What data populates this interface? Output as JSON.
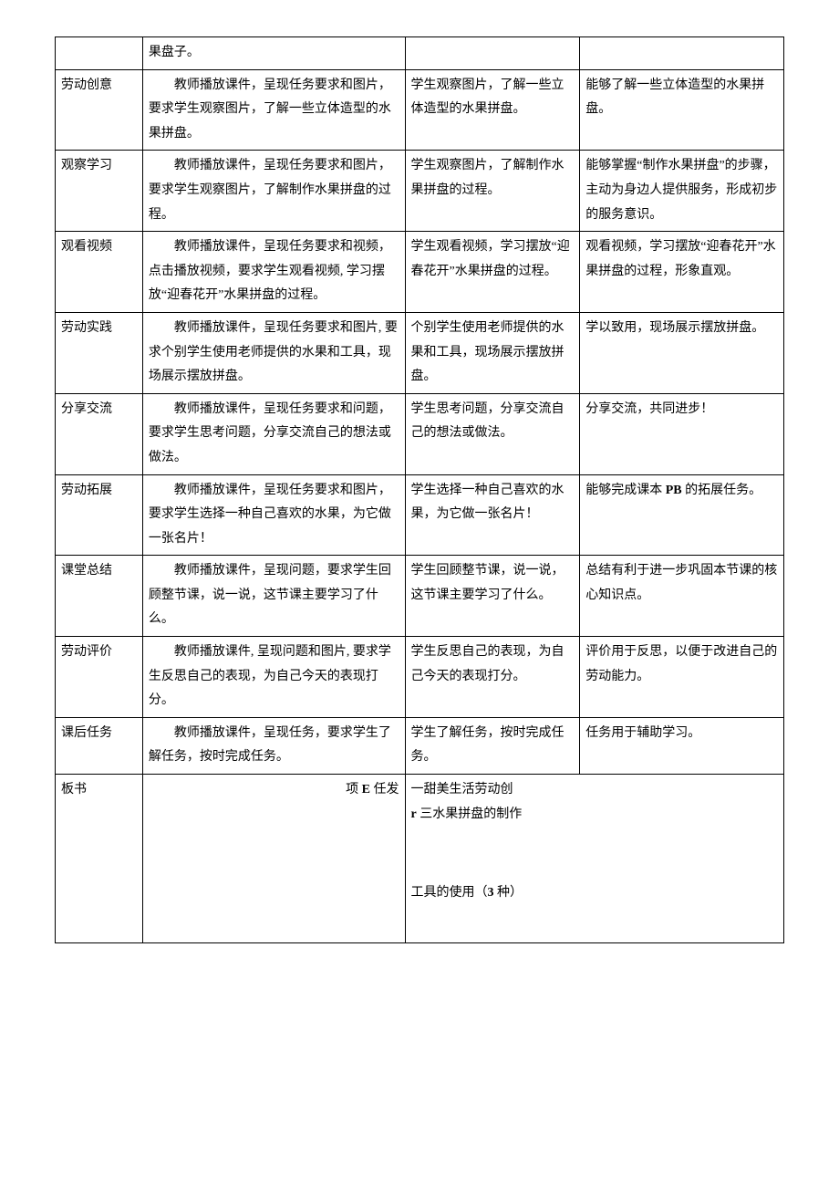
{
  "rows": [
    {
      "c1": "",
      "c2": "果盘子。",
      "c2class": "",
      "c3": "",
      "c4": ""
    },
    {
      "c1": "劳动创意",
      "c2": "教师播放课件，呈现任务要求和图片，要求学生观察图片，了解一些立体造型的水果拼盘。",
      "c2class": "indent",
      "c3": "学生观察图片，了解一些立体造型的水果拼盘。",
      "c4": "能够了解一些立体造型的水果拼盘。"
    },
    {
      "c1": "观察学习",
      "c2": "教师播放课件，呈现任务要求和图片，要求学生观察图片，了解制作水果拼盘的过程。",
      "c2class": "indent",
      "c3": "学生观察图片，了解制作水果拼盘的过程。",
      "c4": "能够掌握“制作水果拼盘”的步骤，主动为身边人提供服务，形成初步的服务意识。"
    },
    {
      "c1": "观看视频",
      "c2": "教师播放课件，呈现任务要求和视频，点击播放视频，要求学生观看视频, 学习摆放“迎春花开”水果拼盘的过程。",
      "c2class": "indent",
      "c3": "学生观看视频，学习摆放“迎春花开”水果拼盘的过程。",
      "c4": "观看视频，学习摆放“迎春花开”水果拼盘的过程，形象直观。"
    },
    {
      "c1": "劳动实践",
      "c2": "教师播放课件，呈现任务要求和图片, 要求个别学生使用老师提供的水果和工具，现场展示摆放拼盘。",
      "c2class": "indent",
      "c3": "个别学生使用老师提供的水果和工具，现场展示摆放拼盘。",
      "c4": "学以致用，现场展示摆放拼盘。"
    },
    {
      "c1": "分享交流",
      "c2": "教师播放课件，呈现任务要求和问题，要求学生思考问题，分享交流自己的想法或做法。",
      "c2class": "indent",
      "c3": "学生思考问题，分享交流自己的想法或做法。",
      "c4": "分享交流，共同进步！"
    },
    {
      "c1": "劳动拓展",
      "c2": "教师播放课件，呈现任务要求和图片，要求学生选择一种自己喜欢的水果，为它做一张名片！",
      "c2class": "indent",
      "c3": "学生选择一种自己喜欢的水果，为它做一张名片！",
      "c4html": "能够完成课本 <span class=\"bold\">PB</span> 的拓展任务。"
    },
    {
      "c1": "课堂总结",
      "c2": "教师播放课件，呈现问题，要求学生回顾整节课，说一说，这节课主要学习了什么。",
      "c2class": "indent",
      "c3": "学生回顾整节课，说一说，这节课主要学习了什么。",
      "c4": "总结有利于进一步巩固本节课的核心知识点。"
    },
    {
      "c1": "劳动评价",
      "c2": "教师播放课件, 呈现问题和图片, 要求学生反思自己的表现，为自己今天的表现打分。",
      "c2class": "indent",
      "c3": "学生反思自己的表现，为自己今天的表现打分。",
      "c4": "评价用于反思，以便于改进自己的劳动能力。"
    },
    {
      "c1": "课后任务",
      "c2": "教师播放课件，呈现任务，要求学生了解任务，按时完成任务。",
      "c2class": "indent",
      "c3": "学生了解任务，按时完成任务。",
      "c4": "任务用于辅助学习。"
    }
  ],
  "board": {
    "label": "板书",
    "leftLine": "项 E 任发",
    "leftLineHtml": "项 <span class=\"bold\">E</span> 任发",
    "right1": "一甜美生活劳动创",
    "right2": "r 三水果拼盘的制作",
    "right2Html": "<span class=\"bold\">r</span> 三水果拼盘的制作",
    "right3Html": "工具的使用（<span class=\"bold\">3</span> 种）"
  }
}
